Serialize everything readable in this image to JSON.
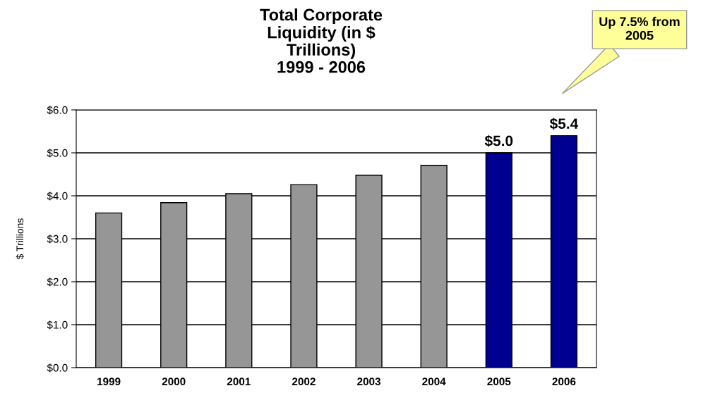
{
  "chart_data": {
    "type": "bar",
    "title": "Total Corporate\nLiquidity (in $\nTrillions)\n1999 - 2006",
    "ylabel": "$ Trillions",
    "categories": [
      "1999",
      "2000",
      "2001",
      "2002",
      "2003",
      "2004",
      "2005",
      "2006"
    ],
    "values": [
      3.6,
      3.84,
      4.05,
      4.26,
      4.48,
      4.71,
      5.0,
      5.4
    ],
    "colors": [
      "#969696",
      "#969696",
      "#969696",
      "#969696",
      "#969696",
      "#969696",
      "#000090",
      "#000090"
    ],
    "value_labels": [
      null,
      null,
      null,
      null,
      null,
      null,
      "$5.0",
      "$5.4"
    ],
    "ylim": [
      0,
      6
    ],
    "yticks": [
      {
        "value": 0,
        "label": "$0.0"
      },
      {
        "value": 1,
        "label": "$1.0"
      },
      {
        "value": 2,
        "label": "$2.0"
      },
      {
        "value": 3,
        "label": "$3.0"
      },
      {
        "value": 4,
        "label": "$4.0"
      },
      {
        "value": 5,
        "label": "$5.0"
      },
      {
        "value": 6,
        "label": "$6.0"
      }
    ],
    "grid": "y",
    "annotations": [
      "Up 7.5% from\n2005"
    ]
  }
}
